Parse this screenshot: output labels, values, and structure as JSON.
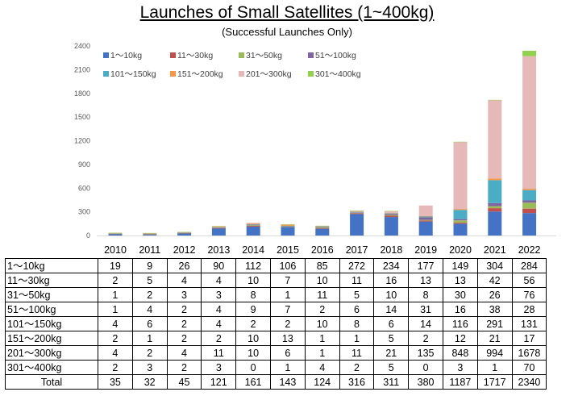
{
  "title": "Launches of Small Satellites (1~400kg)",
  "subtitle": "(Successful Launches Only)",
  "chart_data": {
    "type": "bar",
    "stacked": true,
    "categories": [
      "2010",
      "2011",
      "2012",
      "2013",
      "2014",
      "2015",
      "2016",
      "2017",
      "2018",
      "2019",
      "2020",
      "2021",
      "2022"
    ],
    "ylim": [
      0,
      2400
    ],
    "yticks": [
      "0",
      "300",
      "600",
      "900",
      "1200",
      "1500",
      "1800",
      "2100",
      "2400"
    ],
    "legend_position": "top-left",
    "series": [
      {
        "name": "1～10kg",
        "label": "1～10kg",
        "color": "#4472c4",
        "values": [
          19,
          9,
          26,
          90,
          112,
          106,
          85,
          272,
          234,
          177,
          149,
          304,
          284
        ]
      },
      {
        "name": "11～30kg",
        "label": "11～30kg",
        "color": "#c0504d",
        "values": [
          2,
          5,
          4,
          4,
          10,
          7,
          10,
          11,
          16,
          13,
          13,
          42,
          56
        ]
      },
      {
        "name": "31～50kg",
        "label": "31～50kg",
        "color": "#9bbb59",
        "values": [
          1,
          2,
          3,
          3,
          8,
          1,
          11,
          5,
          10,
          8,
          30,
          26,
          76
        ]
      },
      {
        "name": "51～100kg",
        "label": "51～100kg",
        "color": "#8064a2",
        "values": [
          1,
          4,
          2,
          4,
          9,
          7,
          2,
          6,
          14,
          31,
          16,
          38,
          28
        ]
      },
      {
        "name": "101～150kg",
        "label": "101～150kg",
        "color": "#4bacc6",
        "values": [
          4,
          6,
          2,
          4,
          2,
          2,
          10,
          8,
          6,
          14,
          116,
          291,
          131
        ]
      },
      {
        "name": "151～200kg",
        "label": "151～200kg",
        "color": "#f79646",
        "values": [
          2,
          1,
          2,
          2,
          10,
          13,
          1,
          1,
          5,
          2,
          12,
          21,
          17
        ]
      },
      {
        "name": "201～300kg",
        "label": "201～300kg",
        "color": "#e6b9b8",
        "values": [
          4,
          2,
          4,
          11,
          10,
          6,
          1,
          11,
          21,
          135,
          848,
          994,
          1678
        ]
      },
      {
        "name": "301～400kg",
        "label": "301～400kg",
        "color": "#92d050",
        "values": [
          2,
          3,
          2,
          3,
          0,
          1,
          4,
          2,
          5,
          0,
          3,
          1,
          70
        ]
      }
    ],
    "totals": {
      "label": "Total",
      "values": [
        35,
        32,
        45,
        121,
        161,
        143,
        124,
        316,
        311,
        380,
        1187,
        1717,
        2340
      ]
    }
  }
}
